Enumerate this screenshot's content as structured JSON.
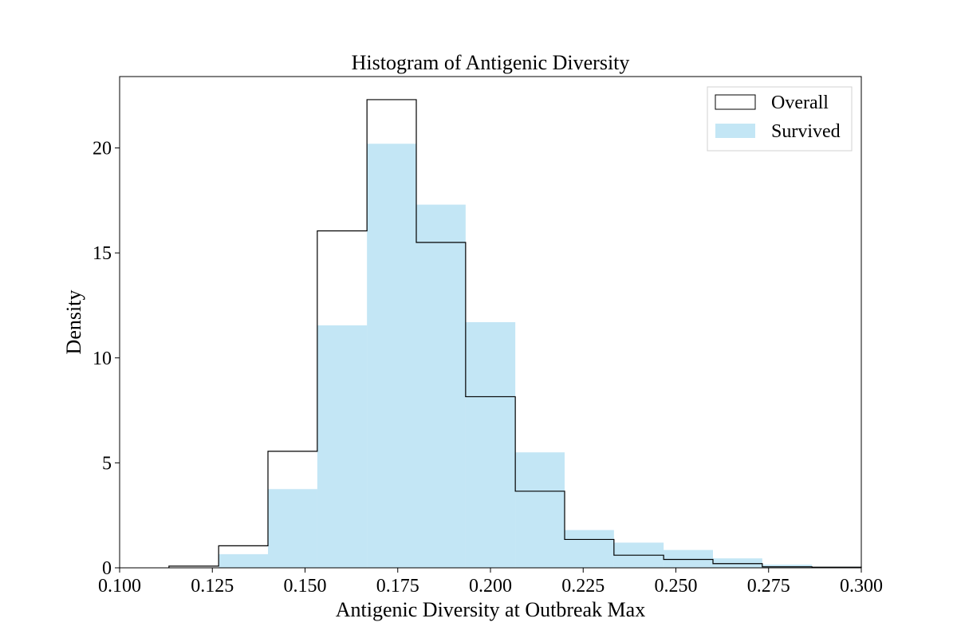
{
  "chart_data": {
    "type": "histogram",
    "title": "Histogram of Antigenic Diversity",
    "xlabel": "Antigenic Diversity at Outbreak Max",
    "ylabel": "Density",
    "xlim": [
      0.1,
      0.3
    ],
    "ylim": [
      0,
      23.4
    ],
    "xticks": [
      "0.100",
      "0.125",
      "0.150",
      "0.175",
      "0.200",
      "0.225",
      "0.250",
      "0.275",
      "0.300"
    ],
    "yticks": [
      "0",
      "5",
      "10",
      "15",
      "20"
    ],
    "bin_edges": [
      0.1133,
      0.1267,
      0.14,
      0.1533,
      0.1667,
      0.18,
      0.1933,
      0.2067,
      0.22,
      0.2333,
      0.2467,
      0.26,
      0.2733,
      0.2867,
      0.3
    ],
    "series": [
      {
        "name": "Overall",
        "style": "step",
        "color": "#000000",
        "values": [
          0.08,
          1.05,
          5.55,
          16.05,
          22.3,
          15.5,
          8.15,
          3.65,
          1.35,
          0.6,
          0.4,
          0.2,
          0.05,
          0.03
        ]
      },
      {
        "name": "Survived",
        "style": "filled",
        "color": "#87ceeb",
        "values": [
          0,
          0.65,
          3.75,
          11.55,
          20.2,
          17.3,
          11.7,
          5.5,
          1.8,
          1.2,
          0.85,
          0.45,
          0.15,
          0.05
        ]
      }
    ],
    "legend_position": "top-right",
    "grid": false
  }
}
